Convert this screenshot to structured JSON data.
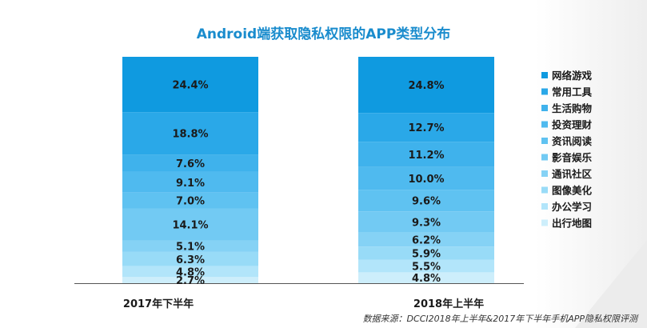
{
  "chart_data": {
    "type": "bar",
    "stacked": true,
    "normalized": true,
    "title": "Android端获取隐私权限的APP类型分布",
    "categories": [
      "2017年下半年",
      "2018年上半年"
    ],
    "series": [
      {
        "name": "网络游戏",
        "values": [
          24.4,
          24.8
        ],
        "labels": [
          "24.4%",
          "24.8%"
        ]
      },
      {
        "name": "常用工具",
        "values": [
          18.8,
          12.7
        ],
        "labels": [
          "18.8%",
          "12.7%"
        ]
      },
      {
        "name": "生活购物",
        "values": [
          7.6,
          11.2
        ],
        "labels": [
          "7.6%",
          "11.2%"
        ]
      },
      {
        "name": "投资理财",
        "values": [
          9.1,
          10.0
        ],
        "labels": [
          "9.1%",
          "10.0%"
        ]
      },
      {
        "name": "资讯阅读",
        "values": [
          7.0,
          9.6
        ],
        "labels": [
          "7.0%",
          "9.6%"
        ]
      },
      {
        "name": "影音娱乐",
        "values": [
          14.1,
          9.3
        ],
        "labels": [
          "14.1%",
          "9.3%"
        ]
      },
      {
        "name": "通讯社区",
        "values": [
          5.1,
          6.2
        ],
        "labels": [
          "5.1%",
          "6.2%"
        ]
      },
      {
        "name": "图像美化",
        "values": [
          6.3,
          5.9
        ],
        "labels": [
          "6.3%",
          "5.9%"
        ]
      },
      {
        "name": "办公学习",
        "values": [
          4.8,
          5.5
        ],
        "labels": [
          "4.8%",
          "5.5%"
        ]
      },
      {
        "name": "出行地图",
        "values": [
          2.7,
          4.8
        ],
        "labels": [
          "2.7%",
          "4.8%"
        ]
      }
    ],
    "colors": [
      "#0f9ae0",
      "#2aa8e8",
      "#3fb2ec",
      "#4fbaef",
      "#5fc2f1",
      "#72caf3",
      "#85d2f5",
      "#98dbf7",
      "#b2e5fa",
      "#cdeefb"
    ],
    "legend_position": "right",
    "xlabel": "",
    "ylabel": ""
  },
  "source_note": "数据来源：DCCI2018年上半年&2017年下半年手机APP隐私权限评测"
}
